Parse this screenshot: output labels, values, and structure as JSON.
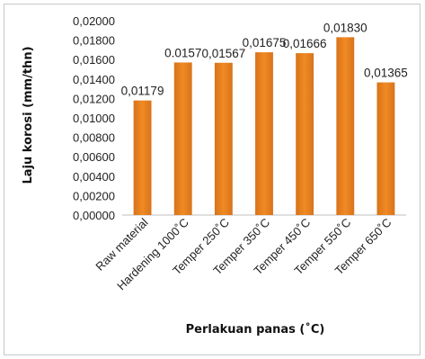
{
  "chart_data": {
    "type": "bar",
    "categories": [
      "Raw material",
      "Hardening 1000˚C",
      "Temper 250˚C",
      "Temper 350˚C",
      "Temper 450˚C",
      "Temper 550˚C",
      "Temper 650˚C"
    ],
    "values": [
      0.01179,
      0.0157,
      0.01567,
      0.01675,
      0.01666,
      0.0183,
      0.01365
    ],
    "data_labels": [
      "0,01179",
      "0.0157",
      "0,01567",
      "0,01675",
      "0,01666",
      "0,01830",
      "0,01365"
    ],
    "ylabel": "Laju korosi (mm/thn)",
    "xlabel": "Perlakuan panas (˚C)",
    "ylim": [
      0,
      0.02
    ],
    "yticks": [
      "0,00000",
      "0,00200",
      "0,00400",
      "0,00600",
      "0,00800",
      "0,01000",
      "0,01200",
      "0,01400",
      "0,01600",
      "0,01800",
      "0,02000"
    ],
    "bar_color": "#f08a24",
    "bar_color_dark": "#d8731a",
    "grid": false
  }
}
